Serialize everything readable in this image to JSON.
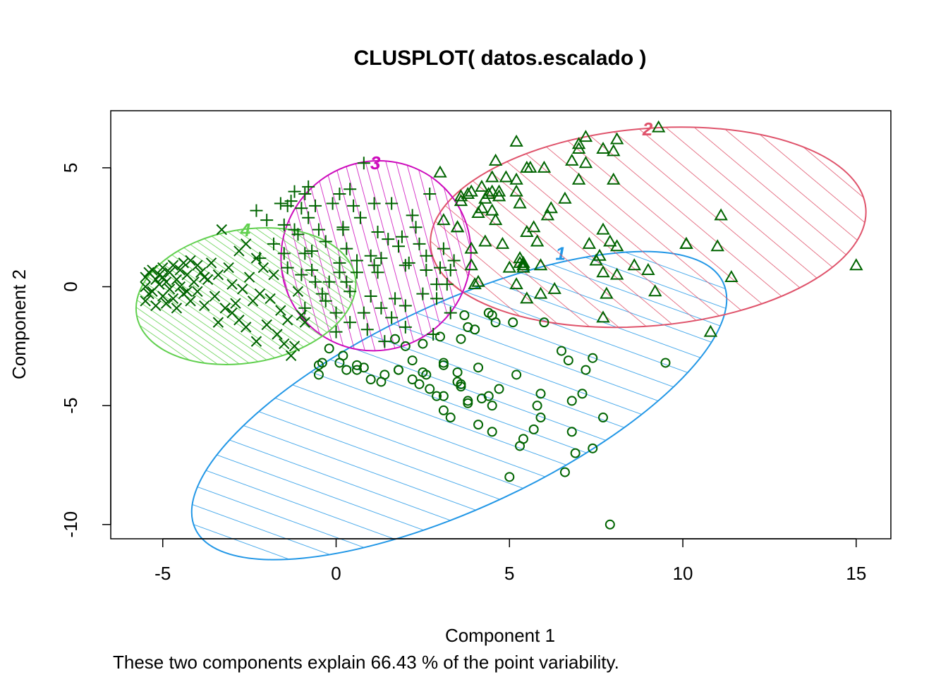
{
  "chart_data": {
    "type": "scatter",
    "title": "CLUSPLOT( datos.escalado )",
    "xlabel": "Component 1",
    "ylabel": "Component 2",
    "subtitle": "These two components explain 66.43 % of the point variability.",
    "xlim": [
      -6.5,
      16
    ],
    "ylim": [
      -10.6,
      7.4
    ],
    "x_ticks": [
      -5,
      0,
      5,
      10,
      15
    ],
    "y_ticks": [
      5,
      0,
      -5,
      -10
    ],
    "point_color": "#006400",
    "clusters": [
      {
        "label": "1",
        "color": "#2297E6",
        "marker": "circle",
        "hatch_angle": 45,
        "ellipse": {
          "cx": 3.55,
          "cy": -5.0,
          "rx": 8.4,
          "ry": 4.3,
          "angle": -25
        },
        "points": [
          [
            -0.5,
            -3.3
          ],
          [
            -0.4,
            -3.2
          ],
          [
            -0.5,
            -3.7
          ],
          [
            -0.2,
            -2.6
          ],
          [
            0.1,
            -3.2
          ],
          [
            0.2,
            -2.9
          ],
          [
            0.3,
            -3.5
          ],
          [
            0.6,
            -3.3
          ],
          [
            0.6,
            -3.5
          ],
          [
            0.8,
            -3.4
          ],
          [
            1.0,
            -3.9
          ],
          [
            1.3,
            -4.0
          ],
          [
            1.4,
            -3.7
          ],
          [
            1.7,
            -2.2
          ],
          [
            1.8,
            -3.5
          ],
          [
            1.8,
            -3.5
          ],
          [
            2.0,
            -2.5
          ],
          [
            2.2,
            -3.1
          ],
          [
            2.2,
            -3.9
          ],
          [
            2.4,
            -4.1
          ],
          [
            2.5,
            -3.6
          ],
          [
            2.6,
            -3.7
          ],
          [
            2.5,
            -2.4
          ],
          [
            2.7,
            -4.3
          ],
          [
            2.9,
            -4.6
          ],
          [
            3.0,
            -2.1
          ],
          [
            3.1,
            -3.2
          ],
          [
            3.1,
            -3.3
          ],
          [
            3.1,
            -4.6
          ],
          [
            3.1,
            -5.2
          ],
          [
            3.3,
            -5.5
          ],
          [
            3.5,
            -3.6
          ],
          [
            3.5,
            -4.0
          ],
          [
            3.6,
            -4.2
          ],
          [
            3.6,
            -4.1
          ],
          [
            3.6,
            -2.2
          ],
          [
            3.7,
            -1.2
          ],
          [
            3.8,
            -1.7
          ],
          [
            3.8,
            -4.8
          ],
          [
            3.8,
            -4.9
          ],
          [
            4.1,
            -3.4
          ],
          [
            4.1,
            -5.8
          ],
          [
            4.0,
            -1.8
          ],
          [
            4.2,
            -4.7
          ],
          [
            4.4,
            -4.6
          ],
          [
            4.4,
            -1.1
          ],
          [
            4.5,
            -1.2
          ],
          [
            4.5,
            -5.0
          ],
          [
            4.5,
            -6.1
          ],
          [
            4.6,
            -1.5
          ],
          [
            4.7,
            -4.3
          ],
          [
            5.1,
            -1.5
          ],
          [
            5.2,
            -3.7
          ],
          [
            5.0,
            -8.0
          ],
          [
            5.3,
            -6.7
          ],
          [
            5.4,
            -6.4
          ],
          [
            5.7,
            -6.0
          ],
          [
            5.9,
            -5.5
          ],
          [
            5.9,
            -4.5
          ],
          [
            5.8,
            -5.0
          ],
          [
            6.0,
            -1.5
          ],
          [
            6.5,
            -2.7
          ],
          [
            6.6,
            -7.8
          ],
          [
            6.7,
            -3.1
          ],
          [
            6.8,
            -6.1
          ],
          [
            6.8,
            -4.8
          ],
          [
            6.9,
            -7.0
          ],
          [
            7.1,
            -4.5
          ],
          [
            7.2,
            -3.5
          ],
          [
            7.4,
            -6.8
          ],
          [
            7.4,
            -3.0
          ],
          [
            7.7,
            -5.5
          ],
          [
            7.9,
            -10.0
          ],
          [
            9.5,
            -3.2
          ]
        ]
      },
      {
        "label": "2",
        "color": "#DF536B",
        "marker": "triangle",
        "hatch_angle": 45,
        "ellipse": {
          "cx": 9.0,
          "cy": 2.5,
          "rx": 6.3,
          "ry": 4.15,
          "angle": -5
        },
        "points": [
          [
            3.0,
            4.8
          ],
          [
            3.1,
            2.8
          ],
          [
            3.5,
            2.5
          ],
          [
            3.5,
            2.5
          ],
          [
            3.6,
            3.6
          ],
          [
            3.6,
            3.8
          ],
          [
            3.8,
            3.9
          ],
          [
            3.9,
            0.9
          ],
          [
            3.9,
            1.6
          ],
          [
            3.9,
            4.0
          ],
          [
            4.0,
            0.1
          ],
          [
            4.1,
            3.1
          ],
          [
            4.1,
            0.2
          ],
          [
            4.2,
            3.3
          ],
          [
            4.2,
            4.2
          ],
          [
            4.3,
            1.9
          ],
          [
            4.3,
            3.7
          ],
          [
            4.4,
            3.9
          ],
          [
            4.5,
            3.2
          ],
          [
            4.5,
            4.0
          ],
          [
            4.5,
            4.6
          ],
          [
            4.6,
            2.8
          ],
          [
            4.6,
            5.3
          ],
          [
            4.7,
            3.8
          ],
          [
            4.7,
            4.0
          ],
          [
            4.8,
            1.8
          ],
          [
            4.9,
            4.6
          ],
          [
            5.0,
            0.8
          ],
          [
            5.2,
            0.1
          ],
          [
            5.2,
            6.1
          ],
          [
            5.2,
            4.0
          ],
          [
            5.3,
            3.5
          ],
          [
            5.2,
            4.5
          ],
          [
            5.3,
            1.0
          ],
          [
            5.3,
            1.2
          ],
          [
            5.4,
            0.8
          ],
          [
            5.4,
            1.0
          ],
          [
            5.4,
            0.9
          ],
          [
            5.5,
            -0.5
          ],
          [
            5.5,
            2.3
          ],
          [
            5.5,
            5.0
          ],
          [
            5.6,
            5.0
          ],
          [
            5.7,
            2.5
          ],
          [
            5.8,
            1.9
          ],
          [
            5.9,
            0.9
          ],
          [
            5.9,
            -0.3
          ],
          [
            6.0,
            5.0
          ],
          [
            6.1,
            3.0
          ],
          [
            6.2,
            3.3
          ],
          [
            6.3,
            -0.1
          ],
          [
            6.6,
            3.7
          ],
          [
            6.8,
            5.3
          ],
          [
            7.0,
            4.5
          ],
          [
            7.0,
            5.8
          ],
          [
            7.0,
            6.0
          ],
          [
            7.2,
            6.3
          ],
          [
            7.2,
            5.2
          ],
          [
            7.3,
            1.8
          ],
          [
            7.5,
            1.1
          ],
          [
            7.6,
            1.3
          ],
          [
            7.7,
            0.6
          ],
          [
            7.7,
            -1.3
          ],
          [
            7.7,
            5.8
          ],
          [
            7.7,
            2.4
          ],
          [
            7.8,
            -0.3
          ],
          [
            7.9,
            1.9
          ],
          [
            8.0,
            5.7
          ],
          [
            8.0,
            4.5
          ],
          [
            8.1,
            6.2
          ],
          [
            8.1,
            1.7
          ],
          [
            8.1,
            0.5
          ],
          [
            8.6,
            0.9
          ],
          [
            9.0,
            0.7
          ],
          [
            9.2,
            -0.2
          ],
          [
            9.3,
            6.7
          ],
          [
            10.1,
            1.8
          ],
          [
            10.1,
            1.8
          ],
          [
            10.8,
            -1.9
          ],
          [
            11.0,
            1.7
          ],
          [
            11.1,
            3.0
          ],
          [
            11.4,
            0.4
          ],
          [
            15.0,
            0.9
          ]
        ]
      },
      {
        "label": "3",
        "color": "#CD0BBC",
        "marker": "plus",
        "hatch_angle": 60,
        "ellipse": {
          "cx": 1.15,
          "cy": 1.3,
          "rx": 2.7,
          "ry": 4.05,
          "angle": 45
        },
        "points": [
          [
            -2.3,
            3.2
          ],
          [
            -2.2,
            1.2
          ],
          [
            -2.0,
            2.8
          ],
          [
            -1.8,
            1.8
          ],
          [
            -1.6,
            3.5
          ],
          [
            -1.5,
            2.6
          ],
          [
            -1.5,
            1.4
          ],
          [
            -1.4,
            0.8
          ],
          [
            -1.4,
            3.4
          ],
          [
            -1.3,
            3.6
          ],
          [
            -1.2,
            2.4
          ],
          [
            -1.2,
            4.0
          ],
          [
            -1.1,
            2.2
          ],
          [
            -1.0,
            3.3
          ],
          [
            -1.0,
            0.5
          ],
          [
            -0.9,
            1.4
          ],
          [
            -0.9,
            -0.9
          ],
          [
            -0.9,
            3.9
          ],
          [
            -0.8,
            2.9
          ],
          [
            -0.8,
            4.2
          ],
          [
            -0.7,
            0.7
          ],
          [
            -0.7,
            1.5
          ],
          [
            -0.6,
            3.4
          ],
          [
            -0.5,
            2.4
          ],
          [
            -0.4,
            -0.3
          ],
          [
            -0.3,
            1.9
          ],
          [
            -0.2,
            0.2
          ],
          [
            -0.1,
            3.5
          ],
          [
            0.0,
            -1.1
          ],
          [
            0.0,
            -1.9
          ],
          [
            0.1,
            3.9
          ],
          [
            0.1,
            1.0
          ],
          [
            0.1,
            0.6
          ],
          [
            0.2,
            2.5
          ],
          [
            0.2,
            2.4
          ],
          [
            0.3,
            0.2
          ],
          [
            0.3,
            1.6
          ],
          [
            0.4,
            -0.2
          ],
          [
            0.4,
            4.1
          ],
          [
            0.5,
            3.4
          ],
          [
            0.6,
            1.1
          ],
          [
            0.6,
            0.6
          ],
          [
            0.7,
            2.9
          ],
          [
            0.8,
            5.2
          ],
          [
            0.8,
            -1.1
          ],
          [
            0.9,
            -1.8
          ],
          [
            1.0,
            -0.4
          ],
          [
            1.0,
            1.3
          ],
          [
            1.1,
            3.5
          ],
          [
            1.2,
            0.6
          ],
          [
            1.2,
            2.3
          ],
          [
            1.3,
            1.2
          ],
          [
            1.3,
            -0.9
          ],
          [
            1.4,
            -2.3
          ],
          [
            1.5,
            2.0
          ],
          [
            1.6,
            -1.3
          ],
          [
            1.6,
            3.5
          ],
          [
            1.7,
            -0.5
          ],
          [
            1.8,
            1.7
          ],
          [
            1.9,
            2.1
          ],
          [
            2.0,
            0.9
          ],
          [
            2.0,
            -0.8
          ],
          [
            2.0,
            -1.7
          ],
          [
            2.1,
            1.0
          ],
          [
            2.2,
            3.0
          ],
          [
            2.3,
            2.5
          ],
          [
            2.4,
            1.8
          ],
          [
            2.5,
            -0.3
          ],
          [
            2.6,
            1.3
          ],
          [
            2.6,
            0.7
          ],
          [
            2.7,
            3.9
          ],
          [
            2.8,
            -2.0
          ],
          [
            2.9,
            -0.5
          ],
          [
            3.0,
            0.8
          ],
          [
            3.1,
            1.6
          ],
          [
            3.2,
            0.1
          ],
          [
            3.3,
            0.7
          ],
          [
            3.3,
            -1.1
          ],
          [
            3.4,
            1.1
          ],
          [
            2.9,
            0.1
          ],
          [
            1.1,
            0.9
          ],
          [
            -0.6,
            0.2
          ],
          [
            -0.3,
            -0.6
          ],
          [
            0.4,
            -1.5
          ]
        ]
      },
      {
        "label": "4",
        "color": "#61D04F",
        "marker": "x",
        "hatch_angle": 45,
        "ellipse": {
          "cx": -2.6,
          "cy": -0.4,
          "rx": 3.2,
          "ry": 2.8,
          "angle": -10
        },
        "points": [
          [
            -5.5,
            0.4
          ],
          [
            -5.5,
            0.0
          ],
          [
            -5.5,
            -0.6
          ],
          [
            -5.4,
            0.6
          ],
          [
            -5.4,
            -0.3
          ],
          [
            -5.3,
            0.7
          ],
          [
            -5.3,
            -0.2
          ],
          [
            -5.2,
            0.3
          ],
          [
            -5.2,
            -0.8
          ],
          [
            -5.1,
            0.5
          ],
          [
            -5.1,
            0.1
          ],
          [
            -5.0,
            0.8
          ],
          [
            -5.0,
            -0.4
          ],
          [
            -4.9,
            0.2
          ],
          [
            -4.9,
            -0.7
          ],
          [
            -4.8,
            0.6
          ],
          [
            -4.8,
            -0.1
          ],
          [
            -4.7,
            0.9
          ],
          [
            -4.7,
            -0.5
          ],
          [
            -4.6,
            0.3
          ],
          [
            -4.6,
            -0.9
          ],
          [
            -4.5,
            0.7
          ],
          [
            -4.5,
            0.0
          ],
          [
            -4.4,
            1.0
          ],
          [
            -4.4,
            -0.3
          ],
          [
            -4.3,
            0.5
          ],
          [
            -4.2,
            -0.6
          ],
          [
            -4.2,
            1.1
          ],
          [
            -4.1,
            0.2
          ],
          [
            -4.0,
            -0.2
          ],
          [
            -4.0,
            0.9
          ],
          [
            -3.9,
            0.6
          ],
          [
            -3.8,
            -0.8
          ],
          [
            -3.7,
            0.3
          ],
          [
            -3.6,
            1.0
          ],
          [
            -3.5,
            -0.4
          ],
          [
            -3.4,
            -1.5
          ],
          [
            -3.4,
            0.5
          ],
          [
            -3.3,
            2.4
          ],
          [
            -3.2,
            -0.9
          ],
          [
            -3.1,
            0.8
          ],
          [
            -3.0,
            -1.1
          ],
          [
            -3.0,
            0.1
          ],
          [
            -2.9,
            -0.7
          ],
          [
            -2.8,
            1.5
          ],
          [
            -2.7,
            -0.1
          ],
          [
            -2.6,
            1.8
          ],
          [
            -2.6,
            -1.7
          ],
          [
            -2.5,
            0.4
          ],
          [
            -2.4,
            -0.6
          ],
          [
            -2.3,
            1.2
          ],
          [
            -2.3,
            -2.3
          ],
          [
            -2.2,
            -0.3
          ],
          [
            -2.1,
            0.8
          ],
          [
            -2.0,
            -1.6
          ],
          [
            -1.9,
            -0.5
          ],
          [
            -1.8,
            0.5
          ],
          [
            -1.7,
            -2.0
          ],
          [
            -1.6,
            -1.0
          ],
          [
            -1.5,
            -2.4
          ],
          [
            -1.4,
            -1.4
          ],
          [
            -1.3,
            -2.9
          ],
          [
            -1.2,
            -2.5
          ],
          [
            -1.1,
            -0.2
          ],
          [
            -1.0,
            -1.2
          ],
          [
            -0.9,
            -1.5
          ],
          [
            -2.8,
            -1.4
          ],
          [
            -3.8,
            0.4
          ],
          [
            -4.3,
            -0.2
          ],
          [
            -5.0,
            0.4
          ]
        ]
      }
    ]
  }
}
